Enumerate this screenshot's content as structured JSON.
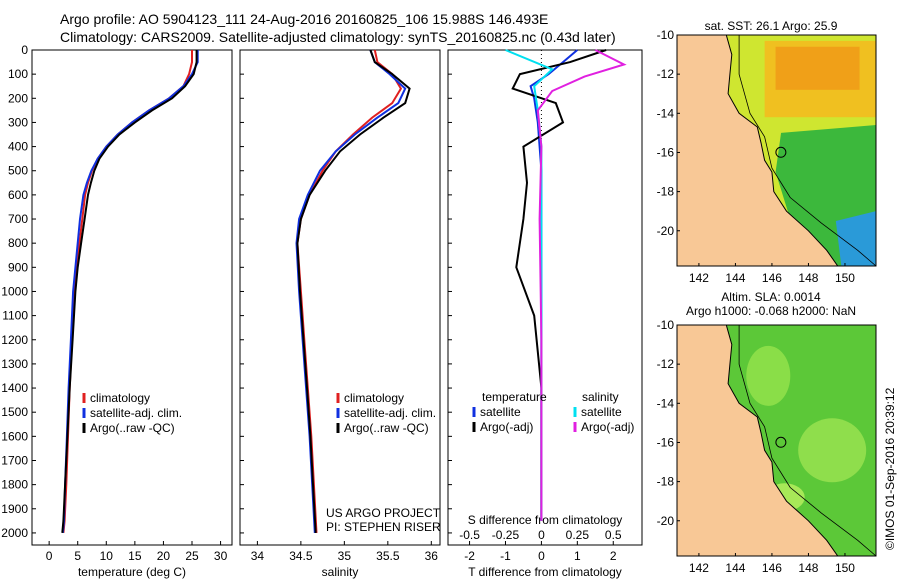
{
  "header": {
    "line1": "Argo profile: AO 5904123_111 24-Aug-2016 20160825_106 15.988S 146.493E",
    "line2": "Climatology: CARS2009. Satellite-adjusted climatology: synTS_20160825.nc (0.43d later)"
  },
  "credits": {
    "project": "US ARGO PROJECT",
    "pi": "PI: STEPHEN RISER"
  },
  "stamp": "©IMOS 01-Sep-2016 20:39:12",
  "colors": {
    "climatology": "#e02020",
    "satellite": "#1030e0",
    "argo": "#000000",
    "sat_salinity": "#00e0f0",
    "argo_adj_salinity": "#e020e0"
  },
  "map_titles": {
    "sst": "sat. SST: 26.1 Argo: 25.9",
    "sla_line1": "Altim. SLA: 0.0014",
    "sla_line2": "Argo h1000: -0.068 h2000: NaN"
  },
  "chart_data": [
    {
      "type": "line",
      "xlabel": "temperature (deg C)",
      "ylabel": "",
      "xlim": [
        -3,
        32
      ],
      "ylim": [
        2050,
        0
      ],
      "y_reversed": true,
      "xticks": [
        0,
        5,
        10,
        15,
        20,
        25,
        30
      ],
      "yticks": [
        0,
        100,
        200,
        300,
        400,
        500,
        600,
        700,
        800,
        900,
        1000,
        1100,
        1200,
        1300,
        1400,
        1500,
        1600,
        1700,
        1800,
        1900,
        2000
      ],
      "legend": [
        "climatology",
        "satellite-adj. clim.",
        "Argo(..raw -QC)"
      ],
      "series": [
        {
          "name": "climatology",
          "x": [
            25.0,
            25.0,
            24.5,
            23.5,
            21.0,
            17.5,
            14.5,
            12.0,
            10.0,
            8.5,
            7.5,
            6.8,
            6.3,
            5.8,
            5.3,
            4.8,
            4.4,
            4.0,
            3.6,
            3.3,
            3.0,
            2.7,
            2.5
          ],
          "y": [
            0,
            50,
            100,
            150,
            200,
            250,
            300,
            350,
            400,
            450,
            500,
            550,
            600,
            700,
            800,
            900,
            1000,
            1200,
            1400,
            1600,
            1800,
            1950,
            2000
          ]
        },
        {
          "name": "satellite-adj. clim.",
          "x": [
            26.0,
            26.0,
            25.0,
            23.5,
            21.0,
            17.5,
            14.5,
            12.0,
            10.0,
            8.5,
            7.4,
            6.6,
            6.0,
            5.4,
            5.0,
            4.6,
            4.2,
            3.8,
            3.4,
            3.1,
            2.8,
            2.6,
            2.4
          ],
          "y": [
            0,
            50,
            100,
            150,
            200,
            250,
            300,
            350,
            400,
            450,
            500,
            550,
            600,
            700,
            800,
            900,
            1000,
            1200,
            1400,
            1600,
            1800,
            1950,
            2000
          ]
        },
        {
          "name": "Argo(..raw -QC)",
          "x": [
            25.8,
            25.8,
            25.3,
            23.8,
            21.5,
            18.0,
            15.0,
            12.3,
            10.3,
            8.8,
            7.9,
            7.3,
            6.8,
            6.2,
            5.6,
            5.0,
            4.6,
            4.1,
            3.6,
            3.2,
            2.8,
            2.5,
            2.3
          ],
          "y": [
            0,
            50,
            100,
            150,
            200,
            250,
            300,
            350,
            400,
            450,
            500,
            550,
            600,
            700,
            800,
            900,
            1000,
            1200,
            1400,
            1600,
            1800,
            1950,
            2000
          ]
        }
      ]
    },
    {
      "type": "line",
      "xlabel": "salinity",
      "ylabel": "",
      "xlim": [
        33.8,
        36.1
      ],
      "ylim": [
        2050,
        0
      ],
      "y_reversed": true,
      "xticks": [
        34,
        34.5,
        35,
        35.5,
        36
      ],
      "legend": [
        "climatology",
        "satellite-adj. clim.",
        "Argo(..raw -QC)"
      ],
      "series": [
        {
          "name": "climatology",
          "x": [
            35.35,
            35.38,
            35.55,
            35.65,
            35.55,
            35.32,
            35.1,
            34.9,
            34.75,
            34.6,
            34.5,
            34.46,
            34.5,
            34.54,
            34.58,
            34.62,
            34.65,
            34.68
          ],
          "y": [
            0,
            50,
            100,
            160,
            220,
            280,
            350,
            420,
            500,
            600,
            700,
            800,
            1000,
            1200,
            1400,
            1600,
            1800,
            2000
          ]
        },
        {
          "name": "satellite-adj. clim.",
          "x": [
            35.3,
            35.35,
            35.52,
            35.7,
            35.62,
            35.38,
            35.12,
            34.9,
            34.72,
            34.58,
            34.48,
            34.45,
            34.48,
            34.52,
            34.56,
            34.6,
            34.63,
            34.66
          ],
          "y": [
            0,
            50,
            100,
            160,
            220,
            280,
            350,
            420,
            500,
            600,
            700,
            800,
            1000,
            1200,
            1400,
            1600,
            1800,
            2000
          ]
        },
        {
          "name": "Argo(..raw -QC)",
          "x": [
            35.3,
            35.35,
            35.55,
            35.75,
            35.7,
            35.45,
            35.18,
            34.95,
            34.78,
            34.6,
            34.5,
            34.46,
            34.49,
            34.53,
            34.57,
            34.61,
            34.64,
            34.67
          ],
          "y": [
            0,
            50,
            100,
            160,
            220,
            280,
            350,
            420,
            500,
            600,
            700,
            800,
            1000,
            1200,
            1400,
            1600,
            1800,
            2000
          ]
        }
      ]
    },
    {
      "type": "line",
      "xlabel": "T difference from climatology",
      "x2label": "S difference from climatology",
      "xlim": [
        -2.6,
        2.8
      ],
      "ylim": [
        2050,
        0
      ],
      "y_reversed": true,
      "xticks": [
        -2,
        -1,
        0,
        1,
        2
      ],
      "x2ticks": [
        {
          "label": "-0.5",
          "t": -2
        },
        {
          "label": "-0.25",
          "t": -1
        },
        {
          "label": "0",
          "t": 0
        },
        {
          "label": "0.25",
          "t": 1
        },
        {
          "label": "0.5",
          "t": 2
        }
      ],
      "legend_headers": [
        "temperature",
        "salinity"
      ],
      "legend": [
        "satellite",
        "Argo(-adj)",
        "satellite",
        "Argo(-adj)"
      ],
      "series": [
        {
          "name": "satellite",
          "x": [
            1.0,
            0.6,
            0.2,
            -0.3,
            -0.2,
            -0.1,
            -0.05,
            0.0,
            0.0,
            0.0,
            0.0,
            0.0,
            0.0
          ],
          "y": [
            0,
            50,
            100,
            150,
            200,
            300,
            400,
            500,
            700,
            1000,
            1400,
            1800,
            1950
          ]
        },
        {
          "name": "Argo(-adj)",
          "x": [
            1.8,
            0.8,
            -0.6,
            -0.8,
            0.4,
            0.6,
            -0.5,
            -0.4,
            -0.5,
            -0.7,
            -0.2,
            0.0,
            0.0
          ],
          "y": [
            0,
            50,
            100,
            160,
            220,
            300,
            400,
            550,
            700,
            900,
            1100,
            1400,
            1950
          ]
        },
        {
          "name": "satellite",
          "x": [
            -1.0,
            0.3,
            -0.2,
            -0.1,
            0.0,
            0.0,
            0.0,
            0.0,
            0.0
          ],
          "y": [
            0,
            80,
            150,
            250,
            400,
            600,
            1000,
            1500,
            1950
          ]
        },
        {
          "name": "Argo(-adj)",
          "x": [
            1.5,
            2.3,
            1.2,
            0.3,
            -0.1,
            0.0,
            -0.05,
            0.0,
            0.0
          ],
          "y": [
            0,
            60,
            110,
            170,
            250,
            400,
            700,
            1200,
            1950
          ]
        }
      ]
    },
    {
      "type": "heatmap",
      "title": "sat. SST: 26.1 Argo: 25.9",
      "xticks": [
        142,
        144,
        146,
        148,
        150
      ],
      "yticks": [
        -10,
        -12,
        -14,
        -16,
        -18,
        -20
      ],
      "xlim": [
        140.8,
        151.7
      ],
      "ylim": [
        -21.8,
        -10
      ],
      "profile_location": {
        "lon": 146.49,
        "lat": -15.99
      }
    },
    {
      "type": "heatmap",
      "title": "Altim. SLA: 0.0014 / Argo h1000: -0.068 h2000: NaN",
      "xticks": [
        142,
        144,
        146,
        148,
        150
      ],
      "yticks": [
        -10,
        -12,
        -14,
        -16,
        -18,
        -20
      ],
      "xlim": [
        140.8,
        151.7
      ],
      "ylim": [
        -21.8,
        -10
      ],
      "profile_location": {
        "lon": 146.49,
        "lat": -15.99
      }
    }
  ]
}
